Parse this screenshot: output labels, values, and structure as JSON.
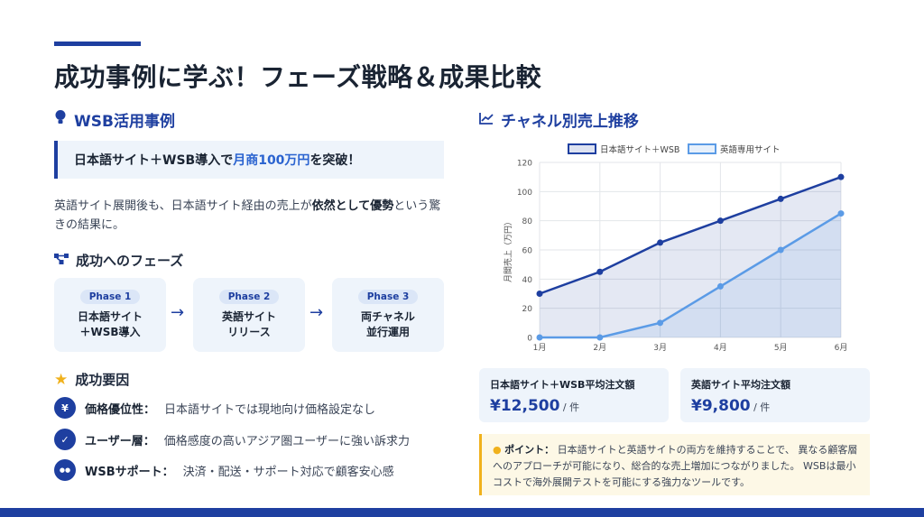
{
  "title": "成功事例に学ぶ！フェーズ戦略＆成果比較",
  "left": {
    "section_title": "WSB活用事例",
    "highlight_before": "日本語サイト＋WSB導入で",
    "highlight_emph": "月商100万円",
    "highlight_after": "を突破！",
    "para_before": "英語サイト展開後も、日本語サイト経由の売上が",
    "para_bold": "依然として優勢",
    "para_after": "という驚きの結果に。",
    "phases_title": "成功へのフェーズ",
    "phases": [
      {
        "badge": "Phase 1",
        "name": "日本語サイト\n＋WSB導入"
      },
      {
        "badge": "Phase 2",
        "name": "英語サイト\nリリース"
      },
      {
        "badge": "Phase 3",
        "name": "両チャネル\n並行運用"
      }
    ],
    "arrow": "→",
    "factors_title": "成功要因",
    "factors": [
      {
        "icon": "yen-icon",
        "glyph": "¥",
        "label": "価格優位性：",
        "text": "日本語サイトでは現地向け価格設定なし"
      },
      {
        "icon": "user-check-icon",
        "glyph": "✓",
        "label": "ユーザー層：",
        "text": "価格感度の高いアジア圏ユーザーに強い訴求力"
      },
      {
        "icon": "chat-icon",
        "glyph": "●●",
        "label": "WSBサポート：",
        "text": "決済・配送・サポート対応で顧客安心感"
      }
    ]
  },
  "right": {
    "section_title": "チャネル別売上推移",
    "cards": [
      {
        "label": "日本語サイト＋WSB平均注文額",
        "value": "¥12,500",
        "unit": " / 件"
      },
      {
        "label": "英語サイト平均注文額",
        "value": "¥9,800",
        "unit": " / 件"
      }
    ],
    "note_label": "ポイント：",
    "note_text": "日本語サイトと英語サイトの両方を維持することで、 異なる顧客層へのアプローチが可能になり、総合的な売上増加につながりました。 WSBは最小コストで海外展開テストを可能にする強力なツールです。"
  },
  "colors": {
    "primary": "#1e3fa0",
    "series1": "#1e3fa0",
    "series2": "#5b9be6",
    "note_accent": "#f0b11c"
  },
  "chart_data": {
    "type": "line",
    "categories": [
      "1月",
      "2月",
      "3月",
      "4月",
      "5月",
      "6月"
    ],
    "series": [
      {
        "name": "日本語サイト＋WSB",
        "values": [
          30,
          45,
          65,
          80,
          95,
          110
        ],
        "color": "#1e3fa0",
        "fill": true
      },
      {
        "name": "英語専用サイト",
        "values": [
          0,
          0,
          10,
          35,
          60,
          85
        ],
        "color": "#5b9be6",
        "fill": true
      }
    ],
    "ylabel": "月間売上（万円）",
    "ylim": [
      0,
      120
    ],
    "yticks": [
      0,
      20,
      40,
      60,
      80,
      100,
      120
    ],
    "grid": true,
    "legend": "top"
  }
}
